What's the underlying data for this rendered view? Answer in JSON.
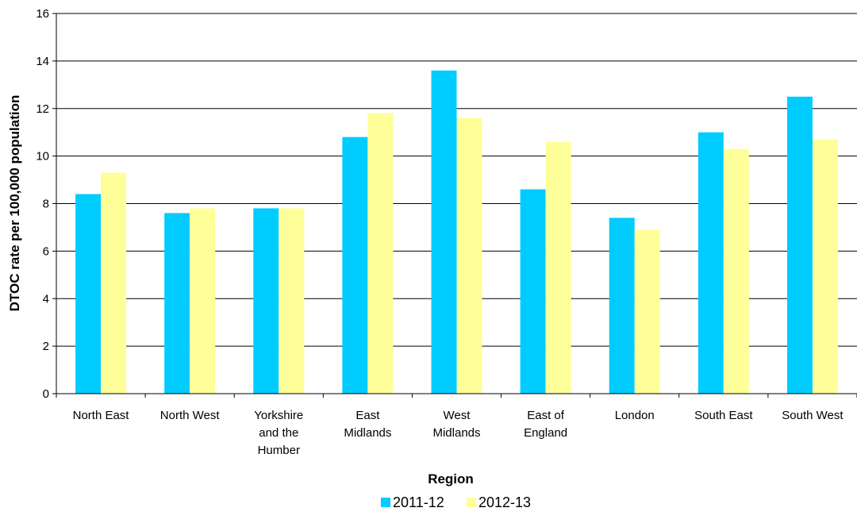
{
  "chart_data": {
    "type": "bar",
    "categories": [
      [
        "North East"
      ],
      [
        "North West"
      ],
      [
        "Yorkshire",
        "and the",
        "Humber"
      ],
      [
        "East",
        "Midlands"
      ],
      [
        "West",
        "Midlands"
      ],
      [
        "East of",
        "England"
      ],
      [
        "London"
      ],
      [
        "South East"
      ],
      [
        "South West"
      ]
    ],
    "series": [
      {
        "name": "2011-12",
        "color": "#00CCFF",
        "values": [
          8.4,
          7.6,
          7.8,
          10.8,
          13.6,
          8.6,
          7.4,
          11.0,
          12.5
        ]
      },
      {
        "name": "2012-13",
        "color": "#FFFF99",
        "values": [
          9.3,
          7.8,
          7.8,
          11.8,
          11.6,
          10.6,
          6.9,
          10.3,
          10.7
        ]
      }
    ],
    "xlabel": "Region",
    "ylabel": "DTOC rate per 100,000 population",
    "ylim": [
      0,
      16
    ],
    "yticks": [
      0,
      2,
      4,
      6,
      8,
      10,
      12,
      14,
      16
    ],
    "grid": true,
    "legend_position": "bottom-center"
  }
}
